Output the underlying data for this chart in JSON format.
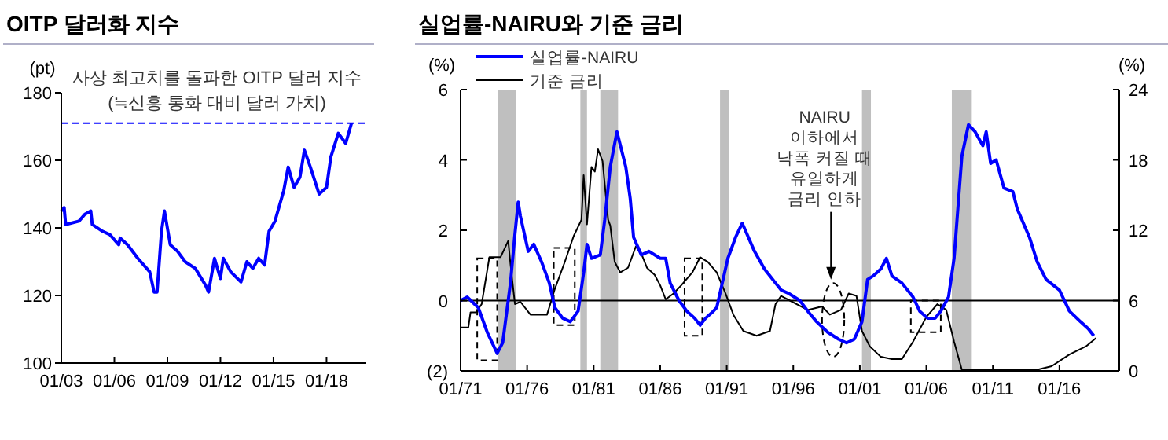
{
  "chart_data": [
    {
      "type": "line",
      "title": "OITP 달러화 지수",
      "ylabel": "(pt)",
      "color": "#0000ff",
      "x": [
        "2003-01",
        "2003-03",
        "2003-04",
        "2004-01",
        "2004-05",
        "2004-09",
        "2004-10",
        "2005-05",
        "2005-10",
        "2006-04",
        "2006-05",
        "2006-10",
        "2007-05",
        "2008-01",
        "2008-04",
        "2008-06",
        "2008-09",
        "2008-11",
        "2009-03",
        "2009-08",
        "2010-01",
        "2010-08",
        "2011-03",
        "2011-05",
        "2011-09",
        "2012-01",
        "2012-03",
        "2012-08",
        "2013-03",
        "2013-07",
        "2013-11",
        "2014-03",
        "2014-07",
        "2014-10",
        "2015-02",
        "2015-08",
        "2015-11",
        "2016-03",
        "2016-07",
        "2016-10",
        "2017-02",
        "2017-08",
        "2018-01",
        "2018-04",
        "2018-09",
        "2019-02",
        "2019-06"
      ],
      "values": [
        145,
        146,
        141,
        142,
        144,
        145,
        141,
        139,
        138,
        135,
        137,
        135,
        131,
        127,
        121,
        121,
        139,
        145,
        135,
        133,
        130,
        128,
        123,
        121,
        131,
        125,
        131,
        127,
        124,
        130,
        128,
        131,
        129,
        139,
        142,
        151,
        158,
        152,
        155,
        163,
        158,
        150,
        152,
        161,
        168,
        165,
        171
      ],
      "xlim": [
        "2003-01",
        "2020-04"
      ],
      "xticks": [
        {
          "value": "2003-01",
          "label": "01/03"
        },
        {
          "value": "2006-01",
          "label": "01/06"
        },
        {
          "value": "2009-01",
          "label": "01/09"
        },
        {
          "value": "2012-01",
          "label": "01/12"
        },
        {
          "value": "2015-01",
          "label": "01/15"
        },
        {
          "value": "2018-01",
          "label": "01/18"
        }
      ],
      "ylim": [
        100,
        180
      ],
      "yticks": [
        100,
        120,
        140,
        160,
        180
      ],
      "ref_lines": [
        {
          "axis": "y",
          "value": 171,
          "color": "#0000ff",
          "line_style": "dashed"
        }
      ],
      "annotations": [
        "사상 최고치를 돌파한 OITP 달러 지수",
        "(≒신흥 통화 대비 달러 가치)"
      ]
    },
    {
      "type": "line",
      "title": "실업률-NAIRU와 기준 금리",
      "ylabel": "(%)",
      "y2label": "(%)",
      "legend": "top left",
      "series": [
        {
          "name": "실업률-NAIRU",
          "color": "#0000ff",
          "x": [
            "1971-01",
            "1971-07",
            "1972-05",
            "1973-01",
            "1973-10",
            "1974-03",
            "1974-10",
            "1975-02",
            "1975-05",
            "1975-07",
            "1976-02",
            "1976-07",
            "1977-02",
            "1977-09",
            "1978-02",
            "1978-09",
            "1979-04",
            "1979-11",
            "1980-04",
            "1980-07",
            "1980-11",
            "1981-07",
            "1981-11",
            "1982-04",
            "1982-10",
            "1983-06",
            "1983-10",
            "1984-01",
            "1984-08",
            "1985-03",
            "1986-01",
            "1986-06",
            "1986-10",
            "1987-06",
            "1988-01",
            "1988-08",
            "1989-01",
            "1989-06",
            "1990-01",
            "1990-04",
            "1990-09",
            "1991-02",
            "1991-09",
            "1992-03",
            "1993-02",
            "1993-11",
            "1994-09",
            "1995-02",
            "1995-09",
            "1996-07",
            "1997-02",
            "1997-10",
            "1998-08",
            "1999-06",
            "2000-01",
            "2000-08",
            "2001-03",
            "2001-08",
            "2002-01",
            "2002-08",
            "2003-01",
            "2003-06",
            "2004-03",
            "2005-01",
            "2005-07",
            "2006-02",
            "2006-09",
            "2007-02",
            "2007-09",
            "2008-02",
            "2008-09",
            "2009-03",
            "2009-09",
            "2010-04",
            "2010-07",
            "2010-11",
            "2011-04",
            "2011-11",
            "2012-07",
            "2012-11",
            "2013-10",
            "2014-05",
            "2015-01",
            "2016-01",
            "2016-10",
            "2017-08",
            "2018-03",
            "2018-08"
          ],
          "values": [
            0,
            0.1,
            -0.2,
            -0.9,
            -1.5,
            -1.2,
            0.5,
            1.9,
            2.8,
            2.4,
            1.4,
            1.6,
            1.1,
            0.5,
            -0.2,
            -0.5,
            -0.6,
            -0.3,
            0.8,
            1.6,
            1.2,
            1.3,
            2.3,
            3.8,
            4.8,
            3.8,
            2.9,
            1.8,
            1.3,
            1.4,
            1.2,
            1.2,
            0.5,
            0,
            -0.3,
            -0.5,
            -0.7,
            -0.5,
            -0.3,
            -0.2,
            0.5,
            1.2,
            1.8,
            2.2,
            1.4,
            0.9,
            0.5,
            0.3,
            0.2,
            0,
            -0.3,
            -0.6,
            -0.9,
            -1.1,
            -1.2,
            -1.1,
            -0.6,
            0.6,
            0.7,
            0.9,
            1.2,
            0.7,
            0.5,
            0.1,
            -0.3,
            -0.5,
            -0.5,
            -0.3,
            0.1,
            1.2,
            4.1,
            5,
            4.8,
            4.4,
            4.8,
            3.9,
            4,
            3.2,
            3.1,
            2.6,
            1.8,
            1.1,
            0.6,
            0.3,
            -0.3,
            -0.6,
            -0.8,
            -1
          ]
        },
        {
          "name": "기준 금리",
          "color": "#000000",
          "axis": "y2",
          "x": [
            "1971-01",
            "1971-08",
            "1971-10",
            "1972-03",
            "1972-08",
            "1973-03",
            "1974-01",
            "1974-08",
            "1974-10",
            "1975-02",
            "1975-07",
            "1976-04",
            "1977-07",
            "1978-02",
            "1978-11",
            "1979-07",
            "1980-02",
            "1980-04",
            "1980-07",
            "1980-11",
            "1981-02",
            "1981-05",
            "1981-09",
            "1982-02",
            "1982-04",
            "1982-08",
            "1983-01",
            "1983-08",
            "1984-03",
            "1984-08",
            "1985-01",
            "1985-08",
            "1986-01",
            "1986-06",
            "1987-01",
            "1987-08",
            "1988-06",
            "1989-01",
            "1989-08",
            "1990-04",
            "1990-12",
            "1991-07",
            "1992-04",
            "1993-04",
            "1994-04",
            "1994-09",
            "1995-02",
            "1995-12",
            "1997-02",
            "1998-03",
            "1998-10",
            "1999-08",
            "2000-03",
            "2000-10",
            "2001-03",
            "2001-10",
            "2002-08",
            "2003-06",
            "2004-03",
            "2005-01",
            "2006-01",
            "2006-11",
            "2007-07",
            "2008-02",
            "2008-09",
            "2010-07",
            "2014-05",
            "2015-06",
            "2016-10",
            "2018-01",
            "2018-10"
          ],
          "values": [
            3.7,
            3.7,
            5,
            5,
            5.7,
            9.7,
            9.7,
            11.1,
            9.1,
            5.7,
            5.9,
            4.8,
            4.8,
            7,
            9.3,
            11.5,
            12.9,
            16.7,
            12.5,
            17.4,
            17,
            18.9,
            17.9,
            12.9,
            12.4,
            9.3,
            8.4,
            8.8,
            10.6,
            10,
            8.8,
            8.2,
            7.3,
            6.1,
            6.6,
            7.3,
            8.4,
            9.7,
            9.3,
            8.4,
            6.6,
            4.8,
            3.4,
            3,
            3.4,
            5.7,
            6.4,
            5.9,
            5.2,
            5.5,
            4.8,
            5.2,
            6.6,
            6.4,
            3.4,
            2.1,
            1.2,
            1,
            1,
            2.5,
            4.6,
            5.7,
            5.2,
            2.5,
            0.1,
            0.1,
            0.1,
            0.4,
            1.4,
            2.1,
            2.8
          ]
        }
      ],
      "xlim": [
        "1971-01",
        "2020-07"
      ],
      "xticks": [
        {
          "value": "1971-01",
          "label": "01/71"
        },
        {
          "value": "1976-01",
          "label": "01/76"
        },
        {
          "value": "1981-01",
          "label": "01/81"
        },
        {
          "value": "1986-01",
          "label": "01/86"
        },
        {
          "value": "1991-01",
          "label": "01/91"
        },
        {
          "value": "1996-01",
          "label": "01/96"
        },
        {
          "value": "2001-01",
          "label": "01/01"
        },
        {
          "value": "2006-01",
          "label": "01/06"
        },
        {
          "value": "2011-01",
          "label": "01/11"
        },
        {
          "value": "2016-01",
          "label": "01/16"
        }
      ],
      "ylim": [
        -2,
        6
      ],
      "yticks": [
        {
          "value": -2,
          "label": "(2)"
        },
        0,
        2,
        4,
        6
      ],
      "y2lim": [
        0,
        24
      ],
      "y2ticks": [
        0,
        6,
        12,
        18,
        24
      ],
      "ref_lines": [
        {
          "axis": "y",
          "value": 0,
          "color": "#000000",
          "line_style": "solid"
        }
      ],
      "bands": [
        {
          "axis": "x",
          "from": "1973-11",
          "to": "1975-03",
          "color": "#bfbfbf"
        },
        {
          "axis": "x",
          "from": "1980-01",
          "to": "1980-07",
          "color": "#bfbfbf"
        },
        {
          "axis": "x",
          "from": "1981-07",
          "to": "1982-11",
          "color": "#bfbfbf"
        },
        {
          "axis": "x",
          "from": "1990-07",
          "to": "1991-03",
          "color": "#bfbfbf"
        },
        {
          "axis": "x",
          "from": "2001-03",
          "to": "2001-11",
          "color": "#bfbfbf"
        },
        {
          "axis": "x",
          "from": "2007-12",
          "to": "2009-06",
          "color": "#bfbfbf"
        }
      ],
      "annotations": [
        "NAIRU\n이하에서\n낙폭 커질 때\n유일하게\n금리 인하"
      ]
    }
  ]
}
